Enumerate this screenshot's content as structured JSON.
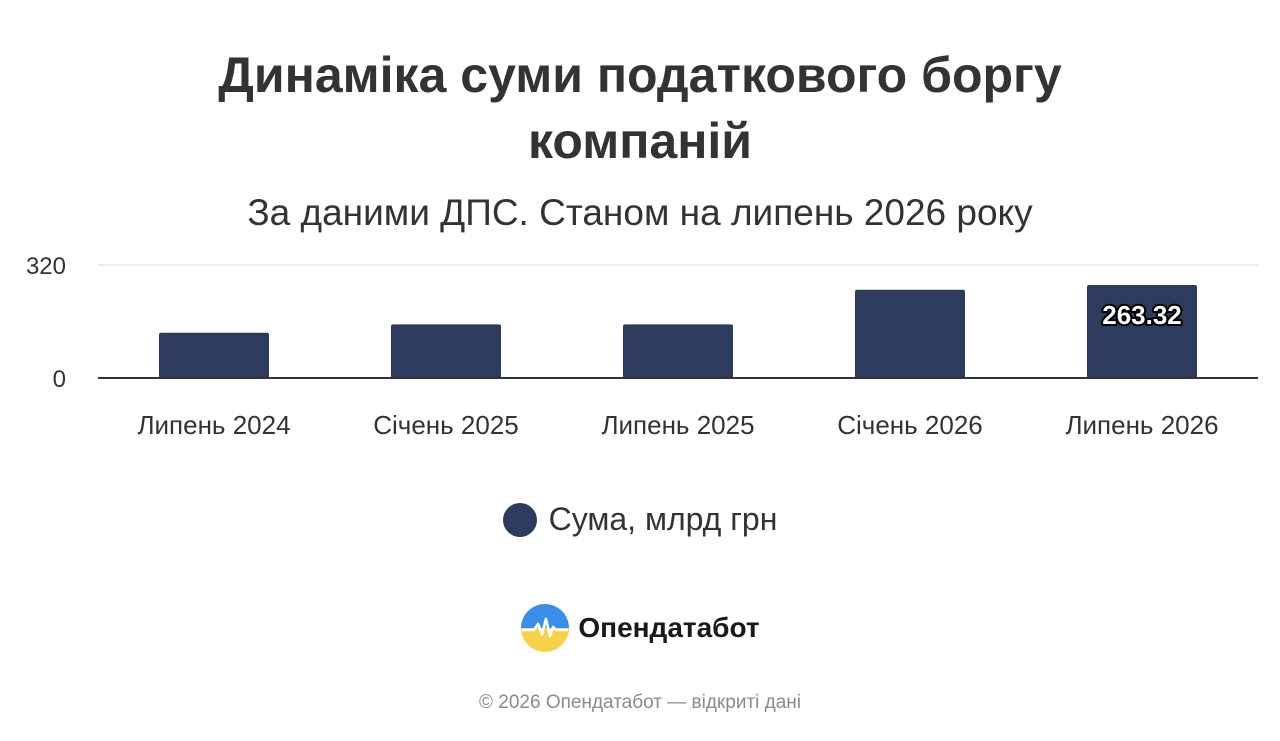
{
  "colors": {
    "bar": "#2d3b5e",
    "axis": "#333333",
    "grid": "#dddddd",
    "text": "#333333",
    "label_text": "#ffffff",
    "label_outline": "#000000",
    "logo_blue": "#3b8ee8",
    "logo_yellow": "#f5d24a"
  },
  "brand": {
    "name": "Опендатабот",
    "icon": "opendatabot-logo-icon"
  },
  "footer": {
    "text": "© 2026 Опендатабот — відкриті дані"
  },
  "chart_data": {
    "type": "bar",
    "title": "Динаміка суми податкового боргу компаній",
    "subtitle": "За даними ДПС. Станом на липень 2026 року",
    "categories": [
      "Липень 2024",
      "Січень 2025",
      "Липень 2025",
      "Січень 2026",
      "Липень 2026"
    ],
    "series": [
      {
        "name": "Сума, млрд грн",
        "values": [
          128,
          152,
          152,
          250,
          263.32
        ]
      }
    ],
    "data_labels": [
      {
        "index": 4,
        "text": "263.32"
      }
    ],
    "y_ticks": [
      0,
      320
    ],
    "ylim": [
      0,
      320
    ],
    "xlabel": "",
    "ylabel": "",
    "grid": true,
    "legend_position": "bottom"
  }
}
